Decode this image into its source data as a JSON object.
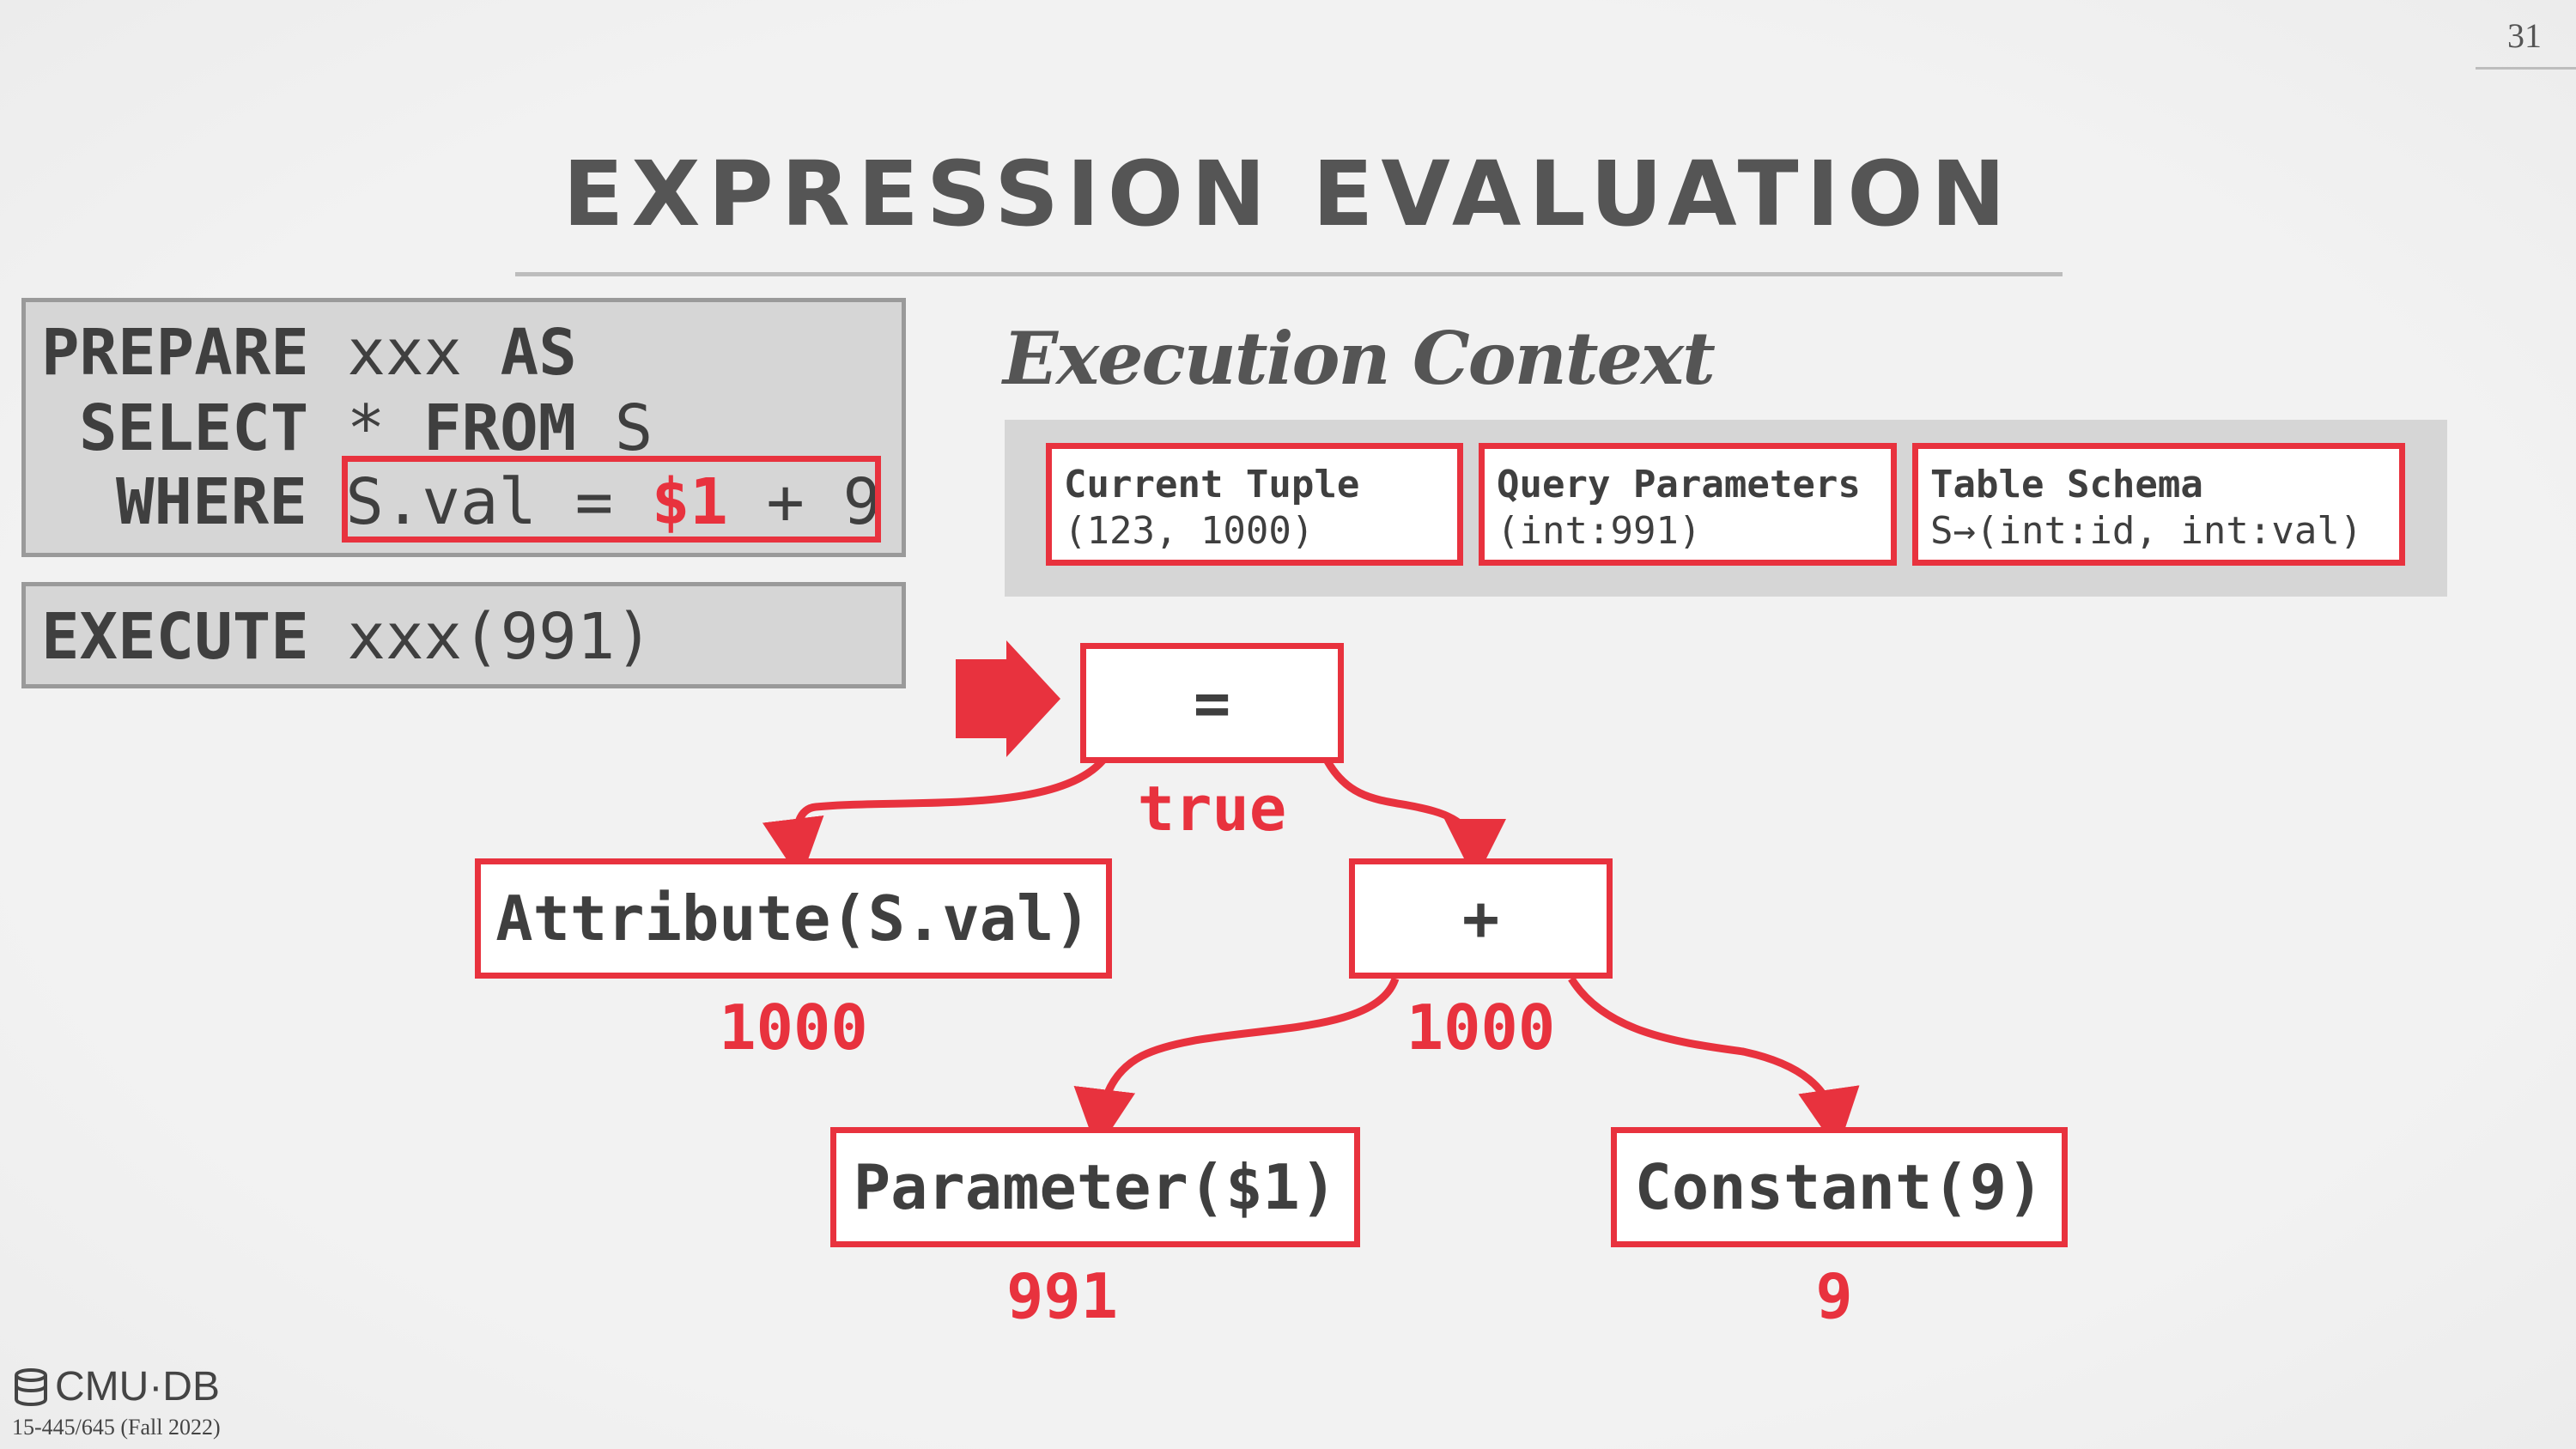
{
  "page_number": "31",
  "title": "EXPRESSION EVALUATION",
  "sql": {
    "line1_kw": "PREPARE",
    "line1_name": " xxx ",
    "line1_as": "AS",
    "line2_kw": "SELECT",
    "line2_rest": " * ",
    "line2_from": "FROM",
    "line2_table": " S",
    "line3_kw": "WHERE",
    "line3_pred": " S.val = ",
    "line3_param": "$1",
    "line3_tail": " + 9",
    "execute_kw": "EXECUTE",
    "execute_rest": " xxx(991)"
  },
  "context": {
    "title": "Execution Context",
    "cards": [
      {
        "label": "Current Tuple",
        "value": "(123, 1000)"
      },
      {
        "label": "Query Parameters",
        "value": "(int:991)"
      },
      {
        "label": "Table Schema",
        "value": "S→(int:id, int:val)"
      }
    ]
  },
  "tree": {
    "root": {
      "label": "=",
      "value": "true"
    },
    "attribute": {
      "label": "Attribute(S.val)",
      "value": "1000"
    },
    "plus": {
      "label": "+",
      "value": "1000"
    },
    "parameter": {
      "label": "Parameter($1)",
      "value": "991"
    },
    "constant": {
      "label": "Constant(9)",
      "value": "9"
    }
  },
  "colors": {
    "accent": "#e8323e",
    "text": "#3f3f3f",
    "panel": "#d6d6d6"
  },
  "footer": {
    "logo": "CMU·DB",
    "course": "15-445/645 (Fall 2022)"
  }
}
